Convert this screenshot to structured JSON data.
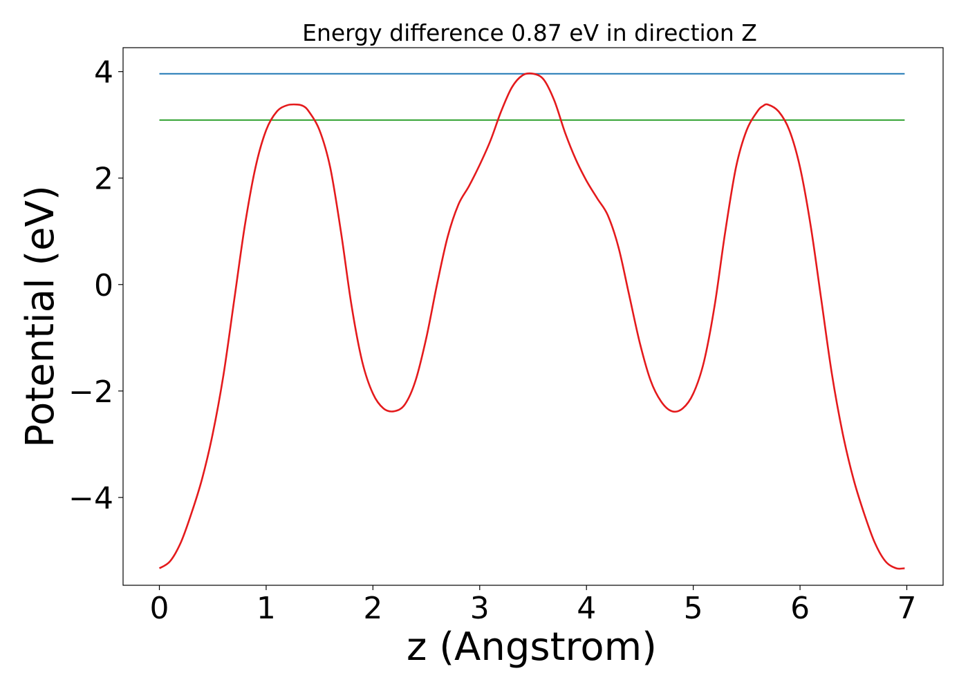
{
  "chart_data": {
    "type": "line",
    "title": "Energy difference 0.87 eV in direction Z",
    "xlabel": "z (Angstrom)",
    "ylabel": "Potential (eV)",
    "xlim": [
      -0.34,
      7.34
    ],
    "ylim": [
      -5.65,
      4.45
    ],
    "xticks": [
      0,
      1,
      2,
      3,
      4,
      5,
      6,
      7
    ],
    "xtick_labels": [
      "0",
      "1",
      "2",
      "3",
      "4",
      "5",
      "6",
      "7"
    ],
    "yticks": [
      -4,
      -2,
      0,
      2,
      4
    ],
    "ytick_labels": [
      "−4",
      "−2",
      "0",
      "2",
      "4"
    ],
    "grid": false,
    "legend": false,
    "series": [
      {
        "color": "#1f77b4",
        "x": [
          0,
          6.98
        ],
        "y": [
          3.96,
          3.96
        ]
      },
      {
        "color": "#2ca02c",
        "x": [
          0,
          6.98
        ],
        "y": [
          3.09,
          3.09
        ]
      },
      {
        "color": "#e41a1c",
        "x": [
          0.0,
          0.1,
          0.2,
          0.3,
          0.4,
          0.5,
          0.6,
          0.7,
          0.8,
          0.9,
          1.0,
          1.1,
          1.2,
          1.3,
          1.35,
          1.4,
          1.5,
          1.6,
          1.7,
          1.8,
          1.9,
          2.0,
          2.1,
          2.2,
          2.3,
          2.4,
          2.5,
          2.6,
          2.7,
          2.8,
          2.9,
          3.0,
          3.1,
          3.2,
          3.3,
          3.4,
          3.5,
          3.6,
          3.7,
          3.8,
          3.9,
          4.0,
          4.1,
          4.2,
          4.3,
          4.4,
          4.5,
          4.6,
          4.7,
          4.8,
          4.9,
          5.0,
          5.1,
          5.2,
          5.3,
          5.4,
          5.5,
          5.6,
          5.65,
          5.7,
          5.8,
          5.9,
          6.0,
          6.1,
          6.2,
          6.3,
          6.4,
          6.5,
          6.6,
          6.7,
          6.8,
          6.9,
          6.98
        ],
        "y": [
          -5.33,
          -5.2,
          -4.85,
          -4.3,
          -3.65,
          -2.8,
          -1.7,
          -0.3,
          1.1,
          2.2,
          2.9,
          3.25,
          3.37,
          3.38,
          3.35,
          3.25,
          2.9,
          2.2,
          1.0,
          -0.4,
          -1.45,
          -2.05,
          -2.33,
          -2.38,
          -2.25,
          -1.8,
          -1.0,
          0.0,
          0.9,
          1.5,
          1.85,
          2.25,
          2.7,
          3.25,
          3.7,
          3.93,
          3.96,
          3.85,
          3.45,
          2.85,
          2.35,
          1.95,
          1.62,
          1.3,
          0.7,
          -0.2,
          -1.1,
          -1.8,
          -2.2,
          -2.38,
          -2.33,
          -2.05,
          -1.45,
          -0.4,
          1.0,
          2.2,
          2.9,
          3.25,
          3.35,
          3.38,
          3.25,
          2.9,
          2.2,
          1.1,
          -0.3,
          -1.7,
          -2.8,
          -3.65,
          -4.3,
          -4.85,
          -5.2,
          -5.33,
          -5.33
        ]
      }
    ]
  }
}
